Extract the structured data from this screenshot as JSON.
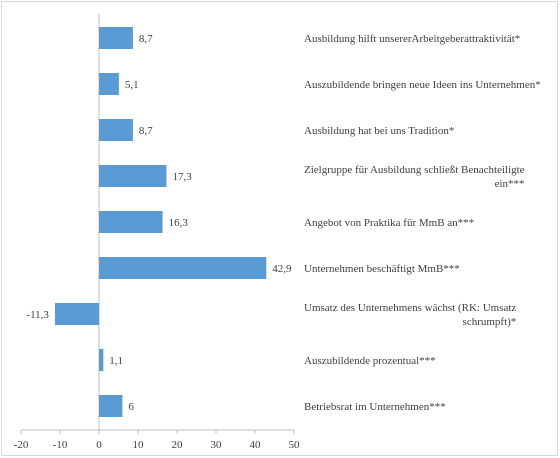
{
  "chart_data": {
    "type": "bar",
    "orientation": "horizontal",
    "categories": [
      "Ausbildung hilft unsererArbeitgeberattraktivität*",
      "Auszubildende bringen neue Ideen ins Unternehmen*",
      "Ausbildung hat bei uns Tradition*",
      "Zielgruppe für Ausbildung schließt Benachteiligte ein***",
      "Angebot von Praktika für MmB an***",
      "Unternehmen beschäftigt MmB***",
      "Umsatz des Unternehmens wächst (RK: Umsatz schrumpft)*",
      "Auszubildende prozentual***",
      "Betriebsrat im Unternehmen***"
    ],
    "values": [
      8.7,
      5.1,
      8.7,
      17.3,
      16.3,
      42.9,
      -11.3,
      1.1,
      6
    ],
    "data_labels": [
      "8,7",
      "5,1",
      "8,7",
      "17,3",
      "16,3",
      "42,9",
      "-11,3",
      "1,1",
      "6"
    ],
    "xlim": [
      -20,
      50
    ],
    "xticks": [
      -20,
      -10,
      0,
      10,
      20,
      30,
      40,
      50
    ],
    "xtick_labels": [
      "-20",
      "-10",
      "0",
      "10",
      "20",
      "30",
      "40",
      "50"
    ],
    "title": "",
    "xlabel": "",
    "ylabel": "",
    "grid": false,
    "legend": "none",
    "bar_color": "#5b9bd5",
    "label_color": "#404040",
    "axis_color": "#bfbfbf"
  }
}
